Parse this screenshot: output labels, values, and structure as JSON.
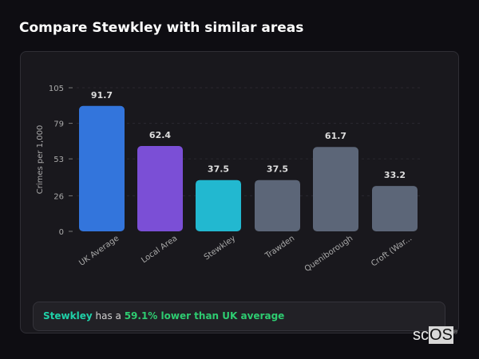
{
  "title": "Compare Stewkley with similar areas",
  "chart_data": {
    "type": "bar",
    "ylabel": "Crimes per 1,000",
    "xlabel": "",
    "ylim": [
      0,
      105
    ],
    "yticks": [
      0,
      26,
      53,
      79,
      105
    ],
    "categories": [
      "UK Average",
      "Local Area",
      "Stewkley",
      "Trawden",
      "Queniborough",
      "Croft (War..."
    ],
    "values": [
      91.7,
      62.4,
      37.5,
      37.5,
      61.7,
      33.2
    ],
    "data_labels": [
      "91.7",
      "62.4",
      "37.5",
      "37.5",
      "61.7",
      "33.2"
    ],
    "colors": [
      "#3375dc",
      "#7b4fd6",
      "#22b8d0",
      "#5c6678",
      "#5c6678",
      "#5c6678"
    ],
    "grid": true
  },
  "summary": {
    "area": "Stewkley",
    "middle": " has a ",
    "highlight": "59.1% lower than UK average"
  },
  "logo": {
    "text_a": "sc",
    "text_b": "OS",
    "mark": "®"
  }
}
